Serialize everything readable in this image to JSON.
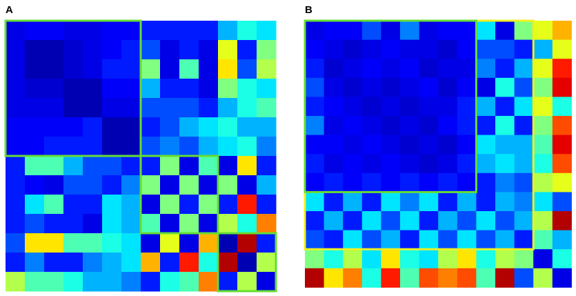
{
  "chart_data": [
    {
      "type": "heatmap",
      "title": "A",
      "zlim": [
        0,
        1
      ],
      "colormap": "jet",
      "values": [
        [
          0.1,
          0.12,
          0.12,
          0.1,
          0.1,
          0.12,
          0.12,
          0.15,
          0.15,
          0.15,
          0.15,
          0.3,
          0.4,
          0.35
        ],
        [
          0.1,
          0.05,
          0.05,
          0.08,
          0.1,
          0.12,
          0.15,
          0.2,
          0.1,
          0.15,
          0.1,
          0.6,
          0.15,
          0.5
        ],
        [
          0.1,
          0.05,
          0.05,
          0.08,
          0.1,
          0.15,
          0.15,
          0.5,
          0.1,
          0.45,
          0.1,
          0.65,
          0.2,
          0.55
        ],
        [
          0.1,
          0.08,
          0.08,
          0.05,
          0.05,
          0.12,
          0.12,
          0.3,
          0.15,
          0.15,
          0.1,
          0.5,
          0.4,
          0.35
        ],
        [
          0.1,
          0.1,
          0.1,
          0.05,
          0.05,
          0.1,
          0.1,
          0.2,
          0.2,
          0.2,
          0.15,
          0.3,
          0.4,
          0.45
        ],
        [
          0.12,
          0.12,
          0.12,
          0.12,
          0.15,
          0.05,
          0.05,
          0.15,
          0.2,
          0.3,
          0.35,
          0.4,
          0.3,
          0.3
        ],
        [
          0.12,
          0.12,
          0.15,
          0.15,
          0.15,
          0.05,
          0.05,
          0.2,
          0.25,
          0.2,
          0.3,
          0.35,
          0.4,
          0.25
        ],
        [
          0.15,
          0.45,
          0.45,
          0.3,
          0.2,
          0.2,
          0.15,
          0.15,
          0.5,
          0.1,
          0.45,
          0.1,
          0.65,
          0.15
        ],
        [
          0.15,
          0.12,
          0.1,
          0.2,
          0.2,
          0.15,
          0.25,
          0.5,
          0.1,
          0.5,
          0.1,
          0.5,
          0.1,
          0.3
        ],
        [
          0.15,
          0.35,
          0.45,
          0.15,
          0.15,
          0.35,
          0.3,
          0.1,
          0.5,
          0.15,
          0.5,
          0.15,
          0.85,
          0.15
        ],
        [
          0.15,
          0.2,
          0.15,
          0.15,
          0.1,
          0.35,
          0.3,
          0.45,
          0.1,
          0.5,
          0.1,
          0.55,
          0.4,
          0.75
        ],
        [
          0.2,
          0.65,
          0.65,
          0.45,
          0.45,
          0.4,
          0.35,
          0.1,
          0.6,
          0.1,
          0.7,
          0.05,
          0.95,
          0.15
        ],
        [
          0.15,
          0.25,
          0.15,
          0.15,
          0.25,
          0.3,
          0.35,
          0.7,
          0.15,
          0.85,
          0.4,
          0.95,
          0.05,
          0.55
        ],
        [
          0.55,
          0.45,
          0.45,
          0.4,
          0.3,
          0.3,
          0.25,
          0.15,
          0.4,
          0.45,
          0.75,
          0.15,
          0.55,
          0.1
        ]
      ]
    },
    {
      "type": "heatmap",
      "title": "B",
      "zlim": [
        0,
        1
      ],
      "colormap": "jet",
      "values": [
        [
          0.1,
          0.12,
          0.12,
          0.2,
          0.1,
          0.25,
          0.1,
          0.12,
          0.12,
          0.35,
          0.1,
          0.5,
          0.6,
          0.7
        ],
        [
          0.12,
          0.1,
          0.08,
          0.1,
          0.12,
          0.1,
          0.1,
          0.08,
          0.12,
          0.2,
          0.2,
          0.15,
          0.3,
          0.6
        ],
        [
          0.15,
          0.08,
          0.1,
          0.12,
          0.1,
          0.12,
          0.08,
          0.1,
          0.1,
          0.25,
          0.15,
          0.3,
          0.6,
          0.85
        ],
        [
          0.2,
          0.1,
          0.08,
          0.1,
          0.08,
          0.1,
          0.12,
          0.08,
          0.12,
          0.1,
          0.4,
          0.2,
          0.5,
          0.9
        ],
        [
          0.15,
          0.12,
          0.1,
          0.08,
          0.1,
          0.08,
          0.1,
          0.1,
          0.15,
          0.3,
          0.15,
          0.35,
          0.6,
          0.4
        ],
        [
          0.25,
          0.1,
          0.12,
          0.1,
          0.08,
          0.1,
          0.08,
          0.12,
          0.15,
          0.15,
          0.4,
          0.15,
          0.5,
          0.8
        ],
        [
          0.12,
          0.12,
          0.1,
          0.12,
          0.1,
          0.08,
          0.1,
          0.08,
          0.12,
          0.35,
          0.3,
          0.3,
          0.45,
          0.9
        ],
        [
          0.15,
          0.1,
          0.12,
          0.1,
          0.12,
          0.1,
          0.08,
          0.1,
          0.15,
          0.3,
          0.35,
          0.3,
          0.4,
          0.8
        ],
        [
          0.12,
          0.15,
          0.12,
          0.15,
          0.12,
          0.15,
          0.12,
          0.15,
          0.12,
          0.15,
          0.25,
          0.2,
          0.55,
          0.6
        ],
        [
          0.35,
          0.15,
          0.3,
          0.15,
          0.35,
          0.25,
          0.35,
          0.15,
          0.3,
          0.15,
          0.3,
          0.25,
          0.35,
          0.2
        ],
        [
          0.15,
          0.3,
          0.15,
          0.35,
          0.2,
          0.35,
          0.15,
          0.3,
          0.2,
          0.35,
          0.2,
          0.3,
          0.55,
          0.95
        ],
        [
          0.2,
          0.15,
          0.35,
          0.2,
          0.3,
          0.15,
          0.35,
          0.2,
          0.35,
          0.2,
          0.3,
          0.15,
          0.45,
          0.3
        ],
        [
          0.5,
          0.4,
          0.55,
          0.35,
          0.65,
          0.4,
          0.35,
          0.55,
          0.65,
          0.4,
          0.55,
          0.5,
          0.1,
          0.4
        ],
        [
          0.95,
          0.65,
          0.75,
          0.4,
          0.85,
          0.45,
          0.8,
          0.75,
          0.8,
          0.45,
          0.95,
          0.2,
          0.55,
          0.1
        ]
      ]
    }
  ]
}
